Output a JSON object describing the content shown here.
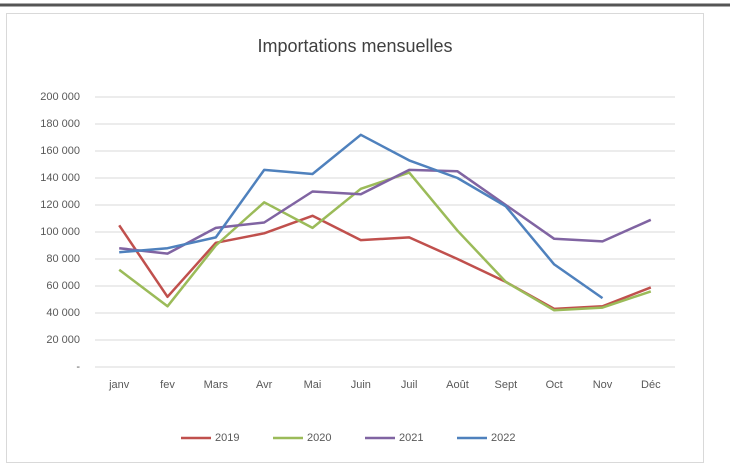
{
  "chart_data": {
    "type": "line",
    "title": "Importations mensuelles",
    "categories": [
      "janv",
      "fev",
      "Mars",
      "Avr",
      "Mai",
      "Juin",
      "Juil",
      "Août",
      "Sept",
      "Oct",
      "Nov",
      "Déc"
    ],
    "series": [
      {
        "name": "2019",
        "color": "#c0504d",
        "values": [
          105000,
          52000,
          92000,
          99000,
          112000,
          94000,
          96000,
          80000,
          63000,
          43000,
          45000,
          59000
        ]
      },
      {
        "name": "2020",
        "color": "#9bbb59",
        "values": [
          72000,
          45000,
          90000,
          122000,
          103000,
          132000,
          144000,
          101000,
          63000,
          42000,
          44000,
          56000
        ]
      },
      {
        "name": "2021",
        "color": "#8064a2",
        "values": [
          88000,
          84000,
          103000,
          107000,
          130000,
          128000,
          146000,
          145000,
          120000,
          95000,
          93000,
          109000
        ]
      },
      {
        "name": "2022",
        "color": "#4f81bd",
        "values": [
          85000,
          88000,
          96000,
          146000,
          143000,
          172000,
          153000,
          140000,
          119000,
          76000,
          51000,
          null
        ]
      }
    ],
    "ylim": [
      0,
      200000
    ],
    "yticks": [
      {
        "value": 0,
        "label": "-"
      },
      {
        "value": 20000,
        "label": "20 000"
      },
      {
        "value": 40000,
        "label": "40 000"
      },
      {
        "value": 60000,
        "label": "60 000"
      },
      {
        "value": 80000,
        "label": "80 000"
      },
      {
        "value": 100000,
        "label": "100 000"
      },
      {
        "value": 120000,
        "label": "120 000"
      },
      {
        "value": 140000,
        "label": "140 000"
      },
      {
        "value": 160000,
        "label": "160 000"
      },
      {
        "value": 180000,
        "label": "180 000"
      },
      {
        "value": 200000,
        "label": "200 000"
      }
    ],
    "grid": true,
    "legend": "bottom"
  }
}
